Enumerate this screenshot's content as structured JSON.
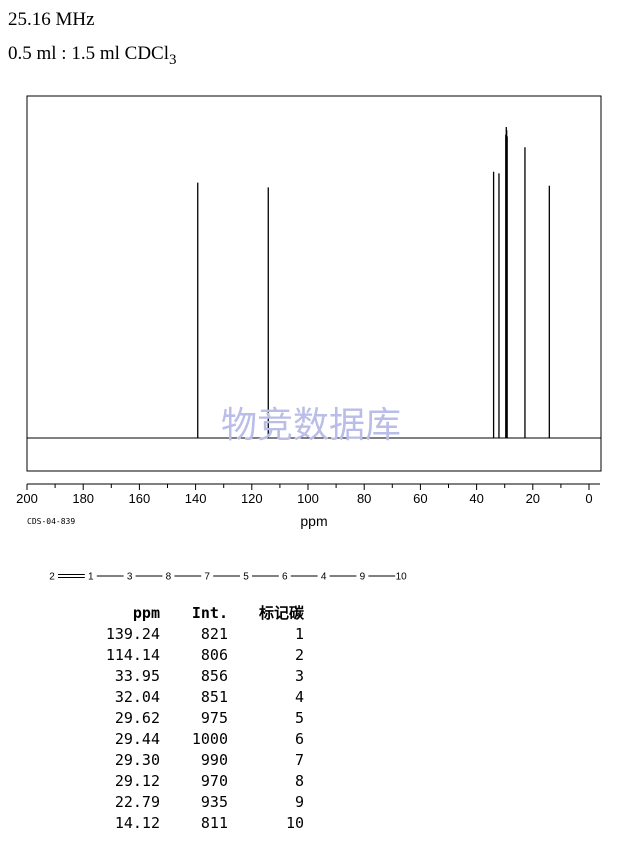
{
  "header": {
    "frequency": "25.16 MHz",
    "solvent_main": "0.5 ml : 1.5 ml CDCl",
    "solvent_sub": "3"
  },
  "spectrum_id": "CDS-04-839",
  "watermark": "物竞数据库",
  "structure_chain": [
    "2",
    "1",
    "3",
    "8",
    "7",
    "5",
    "6",
    "4",
    "9",
    "10"
  ],
  "chart_data": {
    "type": "line",
    "title": "",
    "xlabel": "ppm",
    "ylabel": "",
    "xlim": [
      200,
      0
    ],
    "xaxis_reversed": true,
    "x_ticks": [
      200,
      180,
      160,
      140,
      120,
      100,
      80,
      60,
      40,
      20,
      0
    ],
    "x_tick_labels": [
      "200",
      "180",
      "160",
      "140",
      "120",
      "100",
      "80",
      "60",
      "40",
      "20",
      "0"
    ],
    "grid": false,
    "series": [
      {
        "peaks_ppm": [
          139.24,
          114.14,
          33.95,
          32.04,
          29.62,
          29.44,
          29.3,
          29.12,
          22.79,
          14.12
        ],
        "intensity": [
          821,
          806,
          856,
          851,
          975,
          1000,
          990,
          970,
          935,
          811
        ]
      }
    ]
  },
  "table": {
    "headers": [
      "ppm",
      "Int.",
      "标记碳"
    ],
    "rows": [
      [
        "139.24",
        "821",
        "1"
      ],
      [
        "114.14",
        "806",
        "2"
      ],
      [
        "33.95",
        "856",
        "3"
      ],
      [
        "32.04",
        "851",
        "4"
      ],
      [
        "29.62",
        "975",
        "5"
      ],
      [
        "29.44",
        "1000",
        "6"
      ],
      [
        "29.30",
        "990",
        "7"
      ],
      [
        "29.12",
        "970",
        "8"
      ],
      [
        "22.79",
        "935",
        "9"
      ],
      [
        "14.12",
        "811",
        "10"
      ]
    ]
  }
}
